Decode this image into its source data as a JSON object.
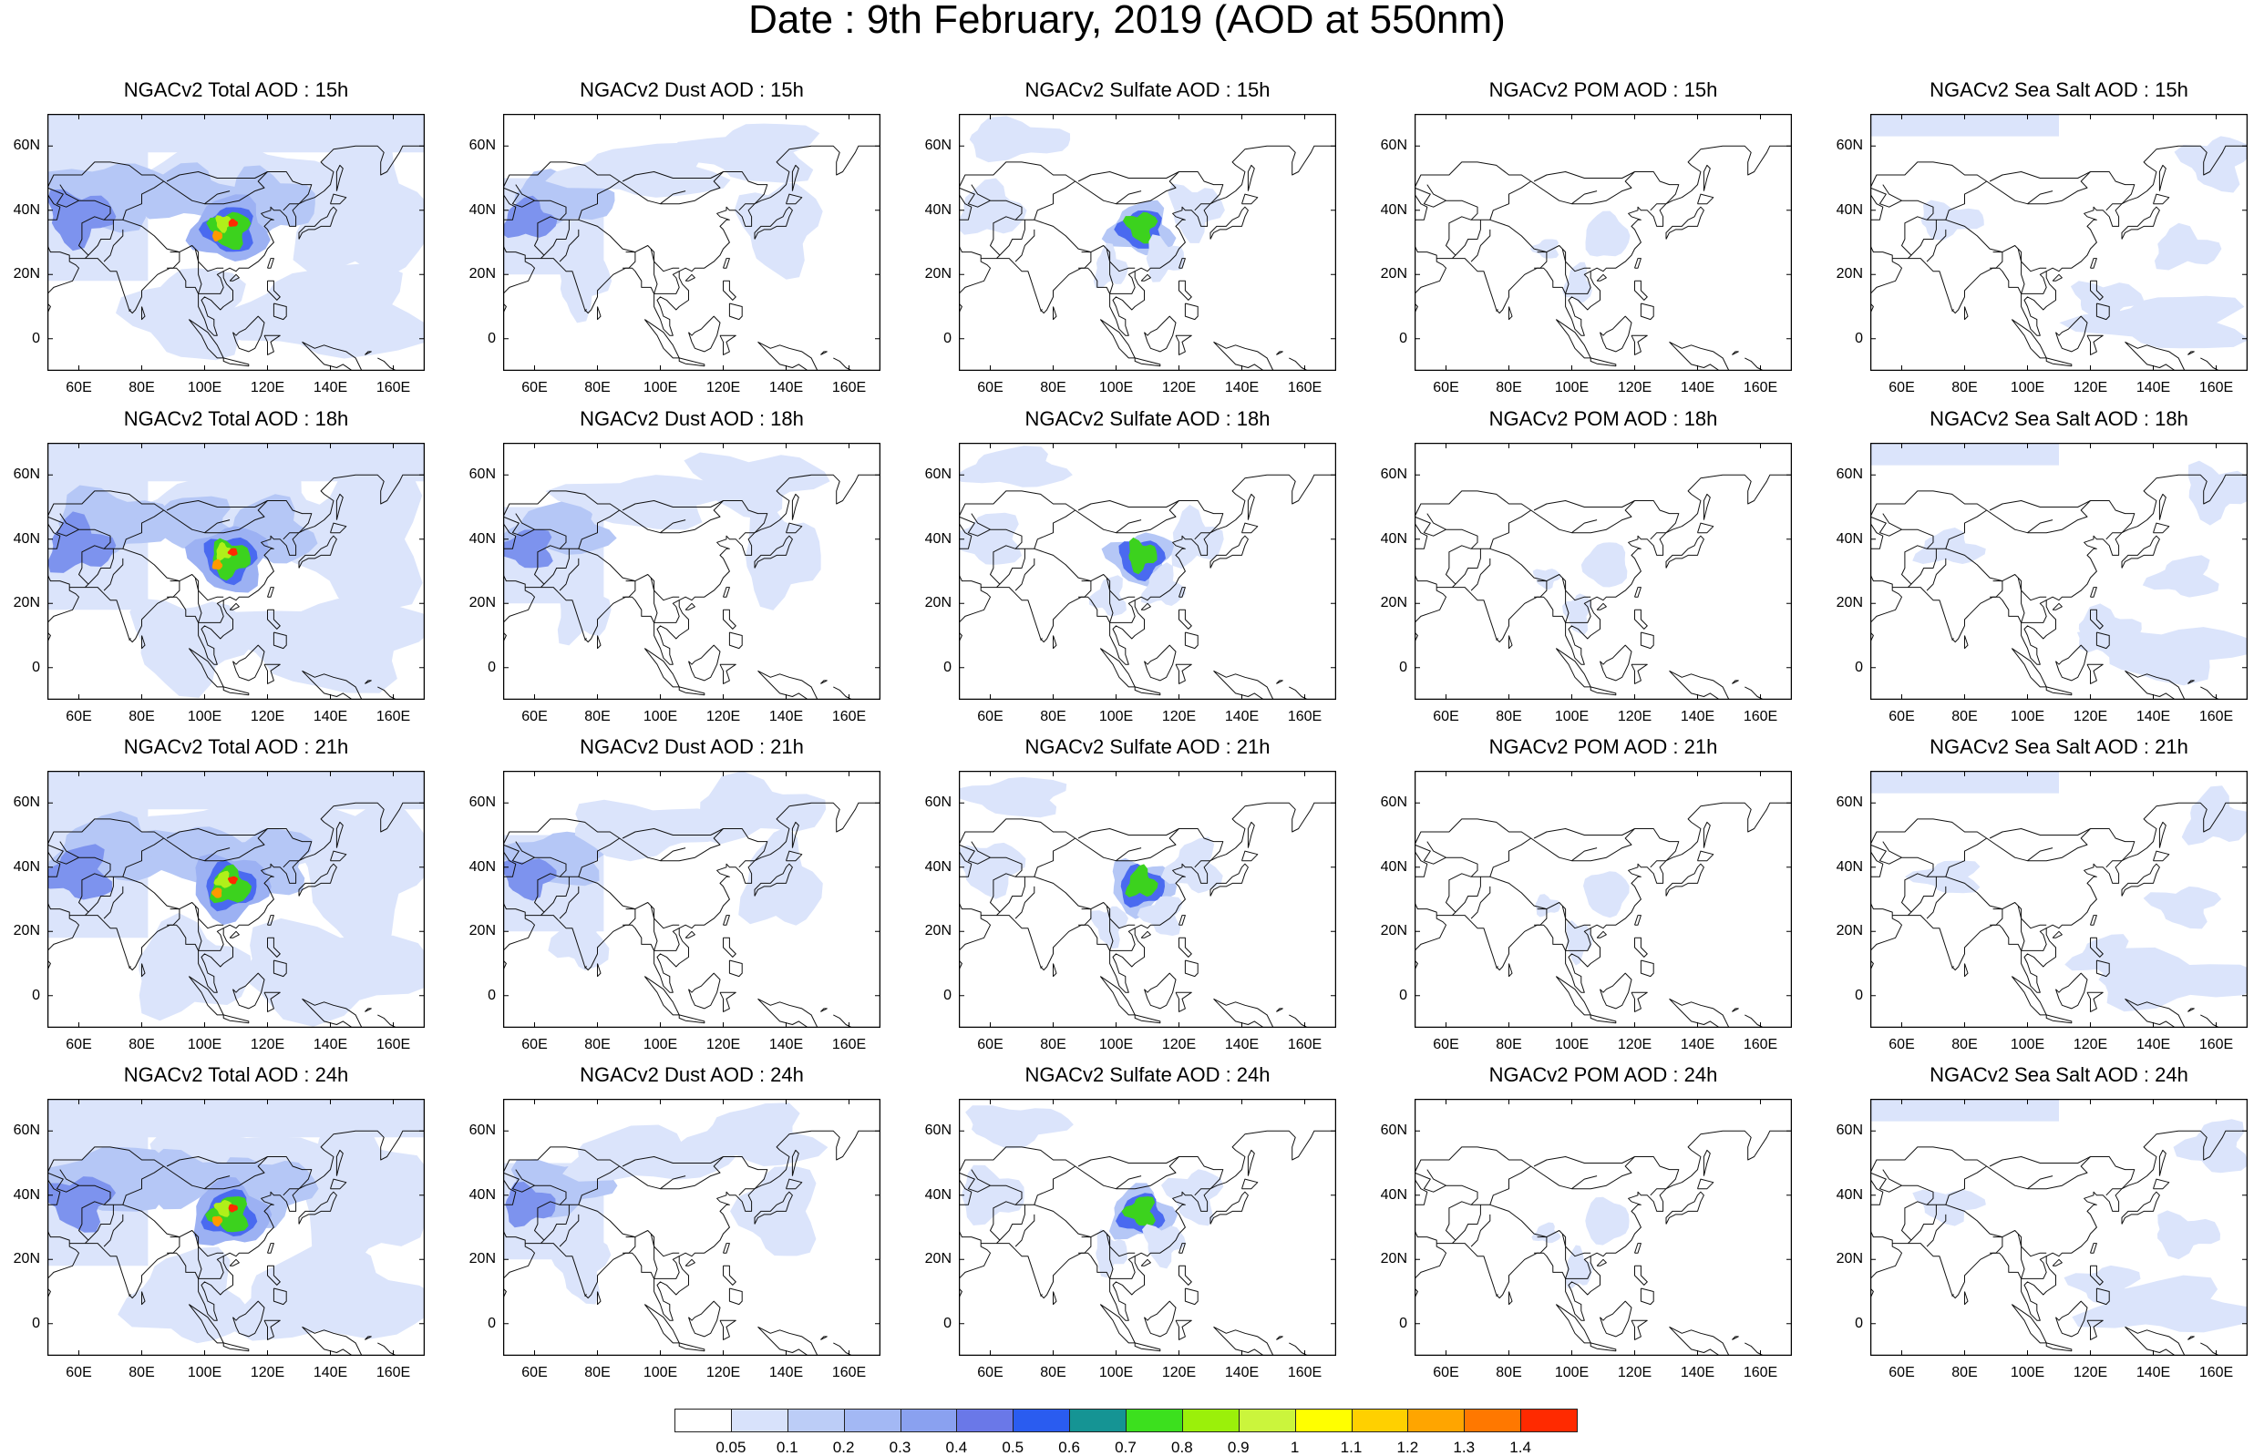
{
  "title": "Date : 9th February, 2019 (AOD at 550nm)",
  "lat_ticks": [
    "60N",
    "40N",
    "20N",
    "0"
  ],
  "lon_ticks": [
    "60E",
    "80E",
    "100E",
    "120E",
    "140E",
    "160E"
  ],
  "panel_titles": [
    [
      "NGACv2 Total AOD : 15h",
      "NGACv2 Dust AOD : 15h",
      "NGACv2 Sulfate AOD : 15h",
      "NGACv2 POM AOD : 15h",
      "NGACv2 Sea Salt AOD : 15h"
    ],
    [
      "NGACv2 Total AOD : 18h",
      "NGACv2 Dust AOD : 18h",
      "NGACv2 Sulfate AOD : 18h",
      "NGACv2 POM AOD : 18h",
      "NGACv2 Sea Salt AOD : 18h"
    ],
    [
      "NGACv2 Total AOD : 21h",
      "NGACv2 Dust AOD : 21h",
      "NGACv2 Sulfate AOD : 21h",
      "NGACv2 POM AOD : 21h",
      "NGACv2 Sea Salt AOD : 21h"
    ],
    [
      "NGACv2 Total AOD : 24h",
      "NGACv2 Dust AOD : 24h",
      "NGACv2 Sulfate AOD : 24h",
      "NGACv2 POM AOD : 24h",
      "NGACv2 Sea Salt  AOD : 24h"
    ]
  ],
  "colorbar": {
    "labels": [
      "0.05",
      "0.1",
      "0.2",
      "0.3",
      "0.4",
      "0.5",
      "0.6",
      "0.7",
      "0.8",
      "0.9",
      "1",
      "1.1",
      "1.2",
      "1.3",
      "1.4"
    ],
    "colors": [
      "#ffffff",
      "#d8e2fb",
      "#bccdf7",
      "#a3b8f4",
      "#8aa1f0",
      "#6a78e8",
      "#2a5cf0",
      "#159494",
      "#3ce01e",
      "#9bf00a",
      "#cbf53c",
      "#ffff00",
      "#ffd000",
      "#ffa500",
      "#ff7800",
      "#ff2a00"
    ]
  },
  "fill_colors": {
    "light": "#dbe4fb",
    "mid": "#b5c7f6",
    "mid2": "#9cb1f3",
    "strong": "#7d93ee",
    "blue": "#4a6af0",
    "green": "#3cd21e",
    "yellow_green": "#b0f01a",
    "orange": "#ff9a00",
    "red": "#ff2a00"
  }
}
